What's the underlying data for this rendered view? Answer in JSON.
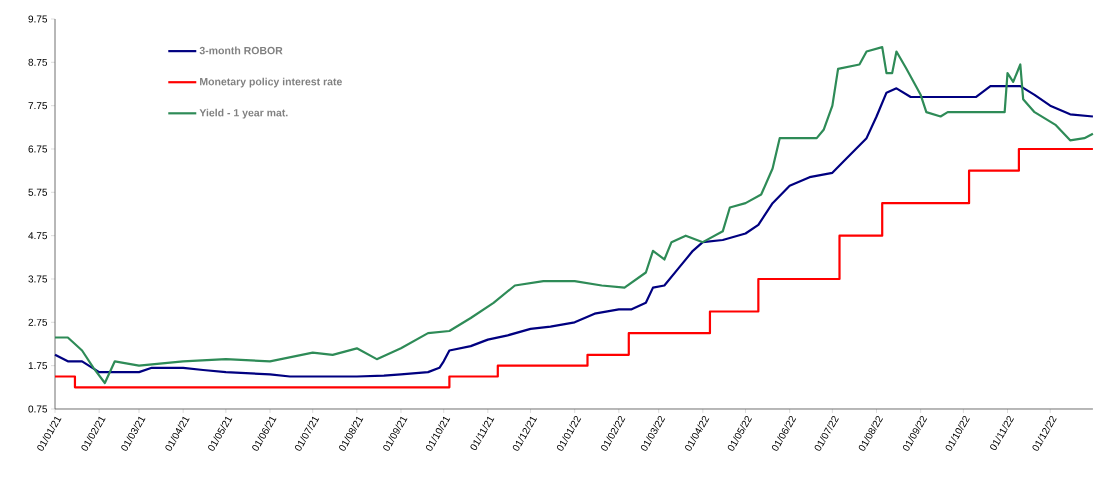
{
  "chart_data": {
    "type": "line",
    "legend": "top left",
    "xlim": [
      "2021-01-01",
      "2022-12-31"
    ],
    "ylim": [
      0.75,
      9.75
    ],
    "yticks": [
      0.75,
      1.75,
      2.75,
      3.75,
      4.75,
      5.75,
      6.75,
      7.75,
      8.75,
      9.75
    ],
    "xticks": [
      {
        "value": "2021-01-01",
        "label": "01/01/21"
      },
      {
        "value": "2021-02-01",
        "label": "01/02/21"
      },
      {
        "value": "2021-03-01",
        "label": "01/03/21"
      },
      {
        "value": "2021-04-01",
        "label": "01/04/21"
      },
      {
        "value": "2021-05-01",
        "label": "01/05/21"
      },
      {
        "value": "2021-06-01",
        "label": "01/06/21"
      },
      {
        "value": "2021-07-01",
        "label": "01/07/21"
      },
      {
        "value": "2021-08-01",
        "label": "01/08/21"
      },
      {
        "value": "2021-09-01",
        "label": "01/09/21"
      },
      {
        "value": "2021-10-01",
        "label": "01/10/21"
      },
      {
        "value": "2021-11-01",
        "label": "01/11/21"
      },
      {
        "value": "2021-12-01",
        "label": "01/12/21"
      },
      {
        "value": "2022-01-01",
        "label": "01/01/22"
      },
      {
        "value": "2022-02-01",
        "label": "01/02/22"
      },
      {
        "value": "2022-03-01",
        "label": "01/03/22"
      },
      {
        "value": "2022-04-01",
        "label": "01/04/22"
      },
      {
        "value": "2022-05-01",
        "label": "01/05/22"
      },
      {
        "value": "2022-06-01",
        "label": "01/06/22"
      },
      {
        "value": "2022-07-01",
        "label": "01/07/22"
      },
      {
        "value": "2022-08-01",
        "label": "01/08/22"
      },
      {
        "value": "2022-09-01",
        "label": "01/09/22"
      },
      {
        "value": "2022-10-01",
        "label": "01/10/22"
      },
      {
        "value": "2022-11-01",
        "label": "01/11/22"
      },
      {
        "value": "2022-12-01",
        "label": "01/12/22"
      }
    ],
    "series": [
      {
        "name": "3-month ROBOR",
        "color": "#000080",
        "x": [
          "2021-01-01",
          "2021-01-10",
          "2021-01-20",
          "2021-02-01",
          "2021-02-15",
          "2021-03-01",
          "2021-03-10",
          "2021-04-01",
          "2021-04-15",
          "2021-05-01",
          "2021-06-01",
          "2021-06-15",
          "2021-07-01",
          "2021-08-01",
          "2021-08-20",
          "2021-09-01",
          "2021-09-20",
          "2021-09-28",
          "2021-10-01",
          "2021-10-05",
          "2021-10-20",
          "2021-11-01",
          "2021-11-15",
          "2021-12-01",
          "2021-12-15",
          "2022-01-01",
          "2022-01-15",
          "2022-02-01",
          "2022-02-10",
          "2022-02-20",
          "2022-02-25",
          "2022-03-05",
          "2022-03-15",
          "2022-03-25",
          "2022-04-01",
          "2022-04-15",
          "2022-05-01",
          "2022-05-10",
          "2022-05-20",
          "2022-06-01",
          "2022-06-15",
          "2022-07-01",
          "2022-07-10",
          "2022-07-25",
          "2022-08-01",
          "2022-08-08",
          "2022-08-15",
          "2022-08-25",
          "2022-09-15",
          "2022-10-10",
          "2022-10-20",
          "2022-11-10",
          "2022-11-20",
          "2022-12-01",
          "2022-12-15",
          "2022-12-31"
        ],
        "values": [
          2.0,
          1.85,
          1.85,
          1.6,
          1.6,
          1.6,
          1.7,
          1.7,
          1.65,
          1.6,
          1.55,
          1.5,
          1.5,
          1.5,
          1.52,
          1.55,
          1.6,
          1.7,
          1.85,
          2.1,
          2.2,
          2.35,
          2.45,
          2.6,
          2.65,
          2.75,
          2.95,
          3.05,
          3.05,
          3.2,
          3.55,
          3.6,
          4.0,
          4.4,
          4.6,
          4.65,
          4.8,
          5.0,
          5.5,
          5.9,
          6.1,
          6.2,
          6.5,
          7.0,
          7.5,
          8.05,
          8.15,
          7.95,
          7.95,
          7.95,
          8.2,
          8.2,
          8.0,
          7.75,
          7.55,
          7.5
        ]
      },
      {
        "name": "Monetary policy interest rate",
        "color": "#ff0000",
        "type": "step",
        "x": [
          "2021-01-01",
          "2021-01-15",
          "2021-10-05",
          "2021-11-08",
          "2022-01-10",
          "2022-02-08",
          "2022-04-06",
          "2022-05-10",
          "2022-07-06",
          "2022-08-05",
          "2022-10-05",
          "2022-11-09",
          "2022-12-31"
        ],
        "values": [
          1.5,
          1.25,
          1.5,
          1.75,
          2.0,
          2.5,
          3.0,
          3.75,
          4.75,
          5.5,
          6.25,
          6.75,
          6.75
        ]
      },
      {
        "name": "Yield - 1 year mat.",
        "color": "#2e8b57",
        "x": [
          "2021-01-01",
          "2021-01-10",
          "2021-01-20",
          "2021-01-28",
          "2021-02-05",
          "2021-02-12",
          "2021-03-01",
          "2021-04-01",
          "2021-05-01",
          "2021-06-01",
          "2021-07-01",
          "2021-07-15",
          "2021-08-01",
          "2021-08-15",
          "2021-09-01",
          "2021-09-20",
          "2021-10-05",
          "2021-10-20",
          "2021-11-05",
          "2021-11-20",
          "2021-12-10",
          "2022-01-01",
          "2022-01-20",
          "2022-02-05",
          "2022-02-20",
          "2022-02-25",
          "2022-03-05",
          "2022-03-10",
          "2022-03-20",
          "2022-04-01",
          "2022-04-15",
          "2022-04-20",
          "2022-05-01",
          "2022-05-12",
          "2022-05-20",
          "2022-05-25",
          "2022-06-20",
          "2022-06-25",
          "2022-07-01",
          "2022-07-05",
          "2022-07-20",
          "2022-07-25",
          "2022-08-05",
          "2022-08-08",
          "2022-08-12",
          "2022-08-15",
          "2022-08-22",
          "2022-09-01",
          "2022-09-05",
          "2022-09-15",
          "2022-09-20",
          "2022-10-01",
          "2022-10-30",
          "2022-11-01",
          "2022-11-05",
          "2022-11-10",
          "2022-11-12",
          "2022-11-20",
          "2022-12-05",
          "2022-12-15",
          "2022-12-25",
          "2022-12-31"
        ],
        "values": [
          2.4,
          2.4,
          2.1,
          1.7,
          1.35,
          1.85,
          1.75,
          1.85,
          1.9,
          1.85,
          2.05,
          2.0,
          2.15,
          1.9,
          2.15,
          2.5,
          2.55,
          2.85,
          3.2,
          3.6,
          3.7,
          3.7,
          3.6,
          3.55,
          3.9,
          4.4,
          4.2,
          4.6,
          4.75,
          4.6,
          4.85,
          5.4,
          5.5,
          5.7,
          6.3,
          7.0,
          7.0,
          7.2,
          7.75,
          8.6,
          8.7,
          9.0,
          9.1,
          8.5,
          8.5,
          9.0,
          8.6,
          8.0,
          7.6,
          7.5,
          7.6,
          7.6,
          7.6,
          8.5,
          8.3,
          8.7,
          7.9,
          7.6,
          7.3,
          6.95,
          7.0,
          7.1
        ]
      }
    ]
  }
}
